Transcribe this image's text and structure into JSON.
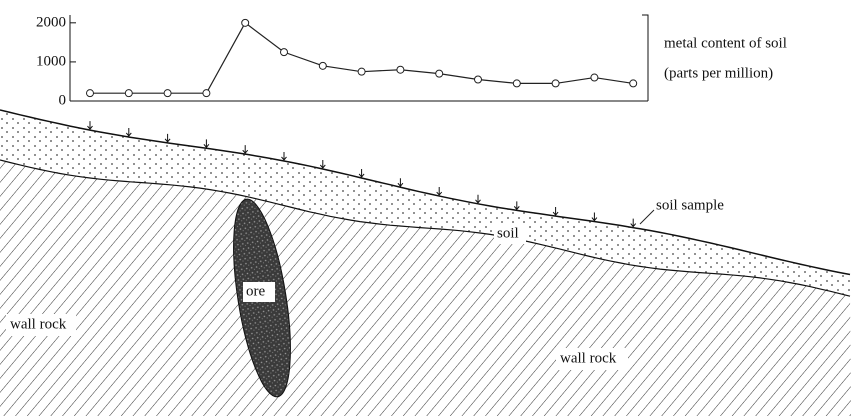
{
  "chart_data": {
    "type": "line",
    "ylabel": [
      "metal content of soil",
      "(parts per million)"
    ],
    "values": [
      200,
      200,
      200,
      200,
      2000,
      1250,
      900,
      750,
      800,
      700,
      550,
      450,
      450,
      600,
      450
    ],
    "color": "#222222",
    "ylim": [
      0,
      2200
    ],
    "yticks": [
      0,
      1000,
      2000
    ]
  },
  "diagram": {
    "soil_sample": "soil sample",
    "soil": "soil",
    "ore": "ore",
    "wall_rock_left": "wall rock",
    "wall_rock_right": "wall rock"
  }
}
